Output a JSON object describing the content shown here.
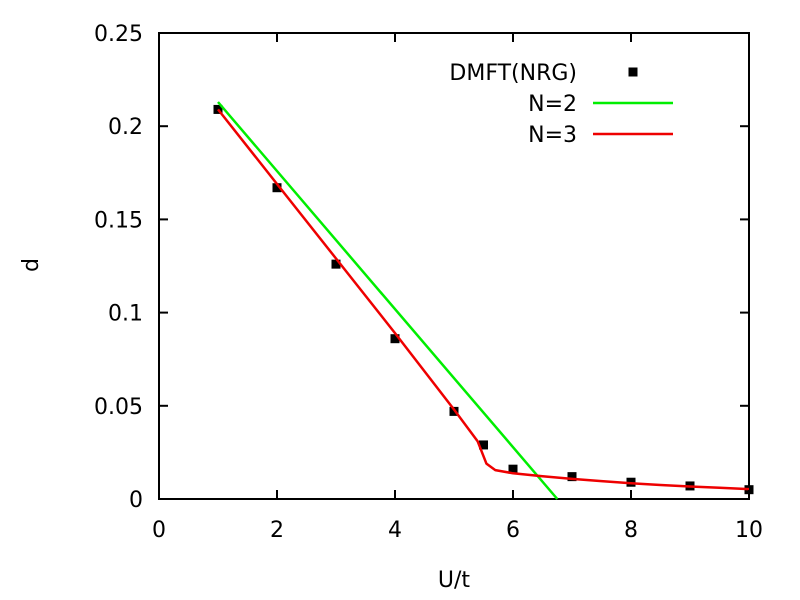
{
  "chart_data": {
    "type": "line",
    "xlabel": "U/t",
    "ylabel": "d",
    "xlim": [
      0,
      10
    ],
    "ylim": [
      0,
      0.25
    ],
    "xticks": [
      0,
      2,
      4,
      6,
      8,
      10
    ],
    "yticks": [
      0,
      0.05,
      0.1,
      0.15,
      0.2,
      0.25
    ],
    "xtick_labels": [
      "0",
      "2",
      "4",
      "6",
      "8",
      "10"
    ],
    "ytick_labels": [
      "0",
      "0.05",
      "0.1",
      "0.15",
      "0.2",
      "0.25"
    ],
    "grid": false,
    "legend_position": "top-right",
    "series": [
      {
        "name": "DMFT(NRG)",
        "style": "markers",
        "color": "#000000",
        "x": [
          1,
          2,
          3,
          4,
          5,
          5.5,
          6,
          7,
          8,
          9,
          10
        ],
        "y": [
          0.209,
          0.167,
          0.126,
          0.086,
          0.047,
          0.029,
          0.016,
          0.012,
          0.009,
          0.007,
          0.005
        ]
      },
      {
        "name": "N=2",
        "style": "line",
        "color": "#00ee00",
        "x": [
          1,
          6.75
        ],
        "y": [
          0.213,
          0.0
        ]
      },
      {
        "name": "N=3",
        "style": "line",
        "color": "#ee0000",
        "x": [
          1,
          2,
          3,
          4,
          5,
          5.4,
          5.55,
          5.7,
          6,
          6.5,
          7,
          7.5,
          8,
          8.5,
          9,
          9.5,
          10
        ],
        "y": [
          0.209,
          0.169,
          0.129,
          0.089,
          0.048,
          0.031,
          0.019,
          0.0155,
          0.0138,
          0.0122,
          0.0108,
          0.0096,
          0.0085,
          0.0075,
          0.0067,
          0.006,
          0.0053
        ]
      }
    ]
  }
}
